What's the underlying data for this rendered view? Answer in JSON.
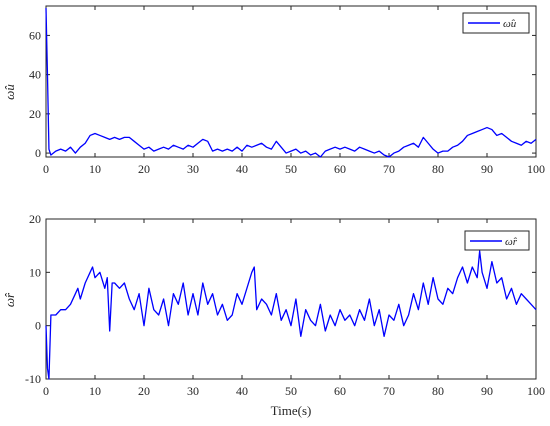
{
  "chart_data": [
    {
      "type": "line",
      "ylabel": "ω̂u",
      "xlabel": "",
      "xlim": [
        0,
        100
      ],
      "ylim": [
        -2,
        75
      ],
      "xticks": [
        0,
        10,
        20,
        30,
        40,
        50,
        60,
        70,
        80,
        90,
        100
      ],
      "yticks": [
        0,
        20,
        40,
        60
      ],
      "legend_position": "top-right",
      "color": "#0000ff",
      "series": [
        {
          "name": "ω̂u",
          "x": [
            0,
            0.3,
            0.6,
            1,
            2,
            3,
            4,
            5,
            6,
            7,
            8,
            9,
            10,
            11,
            12,
            13,
            14,
            15,
            16,
            17,
            18,
            19,
            20,
            21,
            22,
            23,
            24,
            25,
            26,
            27,
            28,
            29,
            30,
            31,
            32,
            33,
            34,
            35,
            36,
            37,
            38,
            39,
            40,
            41,
            42,
            43,
            44,
            45,
            46,
            47,
            48,
            49,
            50,
            51,
            52,
            53,
            54,
            55,
            56,
            57,
            58,
            59,
            60,
            61,
            62,
            63,
            64,
            65,
            66,
            67,
            68,
            69,
            70,
            71,
            72,
            73,
            74,
            75,
            76,
            77,
            78,
            79,
            80,
            81,
            82,
            83,
            84,
            85,
            86,
            87,
            88,
            89,
            90,
            91,
            92,
            93,
            94,
            95,
            96,
            97,
            98,
            99,
            100
          ],
          "values": [
            74,
            40,
            2,
            -1,
            1,
            2,
            1,
            3,
            0,
            3,
            5,
            9,
            10,
            9,
            8,
            7,
            8,
            7,
            8,
            8,
            6,
            4,
            2,
            3,
            1,
            2,
            3,
            2,
            4,
            3,
            2,
            4,
            3,
            5,
            7,
            6,
            1,
            2,
            1,
            2,
            1,
            3,
            1,
            4,
            3,
            4,
            5,
            3,
            2,
            6,
            3,
            0,
            1,
            2,
            0,
            1,
            -1,
            0,
            -2,
            1,
            2,
            3,
            2,
            3,
            2,
            1,
            3,
            2,
            1,
            0,
            1,
            -1,
            -2,
            0,
            1,
            3,
            4,
            5,
            3,
            8,
            5,
            2,
            0,
            1,
            1,
            3,
            4,
            6,
            9,
            10,
            11,
            12,
            13,
            12,
            9,
            10,
            8,
            6,
            5,
            4,
            6,
            5,
            7
          ]
        }
      ]
    },
    {
      "type": "line",
      "ylabel": "ω̂r",
      "xlabel": "Time(s)",
      "xlim": [
        0,
        100
      ],
      "ylim": [
        -10,
        20
      ],
      "xticks": [
        0,
        10,
        20,
        30,
        40,
        50,
        60,
        70,
        80,
        90,
        100
      ],
      "yticks": [
        -10,
        0,
        10,
        20
      ],
      "legend_position": "top-right",
      "color": "#0000ff",
      "series": [
        {
          "name": "ω̂r",
          "x": [
            0,
            0.3,
            0.6,
            1,
            2,
            3,
            4,
            5,
            6,
            6.5,
            7,
            8,
            9,
            9.5,
            10,
            11,
            12,
            12.5,
            13,
            13.5,
            14,
            15,
            16,
            17,
            18,
            19,
            20,
            21,
            22,
            23,
            24,
            25,
            26,
            27,
            28,
            29,
            30,
            31,
            32,
            33,
            34,
            35,
            36,
            37,
            38,
            39,
            40,
            41,
            42,
            42.5,
            43,
            44,
            45,
            46,
            47,
            48,
            49,
            50,
            51,
            52,
            53,
            54,
            55,
            56,
            57,
            58,
            59,
            60,
            61,
            62,
            63,
            64,
            65,
            66,
            67,
            68,
            69,
            70,
            71,
            72,
            73,
            74,
            75,
            76,
            77,
            78,
            79,
            80,
            81,
            82,
            83,
            84,
            85,
            86,
            87,
            88,
            88.5,
            89,
            90,
            91,
            92,
            93,
            94,
            95,
            96,
            97,
            98,
            99,
            100
          ],
          "values": [
            0,
            -8,
            -10,
            2,
            2,
            3,
            3,
            4,
            6,
            7,
            5,
            8,
            10,
            11,
            9,
            10,
            7,
            9,
            -1,
            8,
            8,
            7,
            8,
            5,
            3,
            6,
            0,
            7,
            3,
            2,
            5,
            0,
            6,
            4,
            8,
            2,
            6,
            2,
            8,
            4,
            6,
            2,
            4,
            1,
            2,
            6,
            4,
            7,
            10,
            11,
            3,
            5,
            4,
            2,
            6,
            1,
            3,
            0,
            5,
            -2,
            3,
            1,
            0,
            4,
            -1,
            2,
            0,
            3,
            1,
            2,
            0,
            3,
            1,
            5,
            0,
            3,
            -2,
            2,
            1,
            4,
            0,
            2,
            6,
            3,
            8,
            4,
            9,
            5,
            4,
            7,
            6,
            9,
            11,
            8,
            11,
            9,
            14,
            10,
            7,
            12,
            8,
            9,
            5,
            7,
            4,
            6,
            5,
            4,
            3
          ]
        }
      ]
    }
  ]
}
